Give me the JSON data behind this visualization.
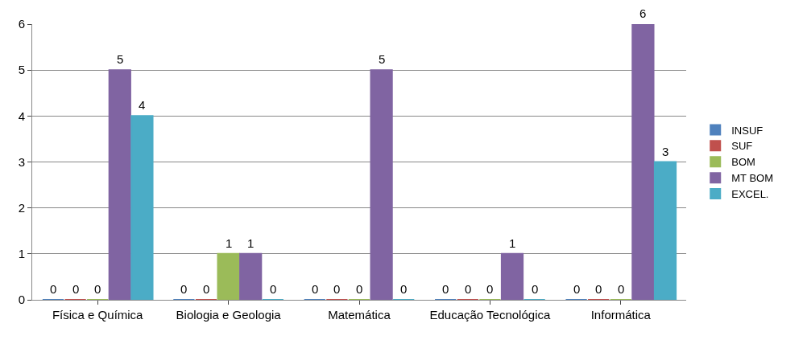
{
  "chart_data": {
    "type": "bar",
    "categories": [
      "Física e Química",
      "Biologia e Geologia",
      "Matemática",
      "Educação Tecnológica",
      "Informática"
    ],
    "series": [
      {
        "name": "INSUF",
        "color": "#4f81bd",
        "values": [
          0,
          0,
          0,
          0,
          0
        ]
      },
      {
        "name": "SUF",
        "color": "#c0504d",
        "values": [
          0,
          0,
          0,
          0,
          0
        ]
      },
      {
        "name": "BOM",
        "color": "#9bbb59",
        "values": [
          0,
          1,
          0,
          0,
          0
        ]
      },
      {
        "name": "MT BOM",
        "color": "#8064a2",
        "values": [
          5,
          1,
          5,
          1,
          6
        ]
      },
      {
        "name": "EXCEL.",
        "color": "#4bacc6",
        "values": [
          4,
          0,
          0,
          0,
          3
        ]
      }
    ],
    "ylim": [
      0,
      6
    ],
    "yticks": [
      0,
      1,
      2,
      3,
      4,
      5,
      6
    ],
    "grid": "y",
    "legend": "right",
    "data_labels": true
  }
}
